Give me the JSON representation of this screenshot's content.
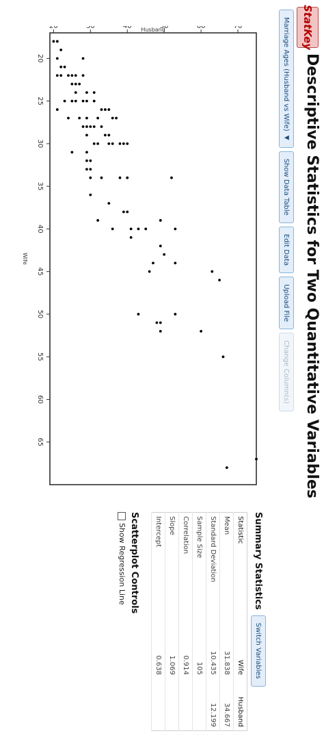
{
  "app": {
    "logo": "StatKey",
    "title": "Descriptive Statistics for Two Quantitative Variables"
  },
  "toolbar": {
    "dataset": "Marriage Ages (Husband vs Wife)",
    "show_table": "Show Data Table",
    "edit": "Edit Data",
    "upload": "Upload File",
    "change_columns": "Change Column(s)"
  },
  "icons": {
    "dataset_dropdown": "chevron-down-icon",
    "regression_checkbox": "checkbox-unchecked-icon"
  },
  "colors": {
    "logo_bg": "#f4c3c3",
    "logo_text": "#b30000",
    "button_bg": "#e3eefa",
    "button_border": "#8ab4d8",
    "point": "#000000"
  },
  "summary": {
    "title": "Summary Statistics",
    "switch_label": "Switch Variables",
    "header": [
      "Statistic",
      "Wife",
      "Husband"
    ],
    "rows": [
      [
        "Mean",
        "31.838",
        "34.667"
      ],
      [
        "Standard Deviation",
        "10.435",
        "12.199"
      ],
      [
        "Sample Size",
        "105",
        ""
      ],
      [
        "Correlation",
        "0.914",
        ""
      ],
      [
        "Slope",
        "1.069",
        ""
      ],
      [
        "Intercept",
        "0.638",
        ""
      ]
    ]
  },
  "controls": {
    "title": "Scatterplot Controls",
    "regression_label": "Show Regression Line",
    "regression_checked": false
  },
  "chart_data": {
    "type": "scatter",
    "xlabel": "Wife",
    "ylabel": "Husband",
    "xlim": [
      17,
      70
    ],
    "ylim": [
      19,
      75
    ],
    "xticks": [
      20,
      25,
      30,
      35,
      40,
      45,
      50,
      55,
      60,
      65
    ],
    "yticks": [
      20,
      30,
      40,
      50,
      60,
      70
    ],
    "points": [
      [
        18,
        20
      ],
      [
        18,
        21
      ],
      [
        19,
        22
      ],
      [
        20,
        21
      ],
      [
        21,
        22
      ],
      [
        21,
        23
      ],
      [
        22,
        21
      ],
      [
        22,
        22
      ],
      [
        22,
        24
      ],
      [
        22,
        25
      ],
      [
        22,
        26
      ],
      [
        22,
        28
      ],
      [
        20,
        28
      ],
      [
        23,
        25
      ],
      [
        23,
        26
      ],
      [
        23,
        27
      ],
      [
        24,
        29
      ],
      [
        24,
        31
      ],
      [
        24,
        26
      ],
      [
        25,
        23
      ],
      [
        25,
        25
      ],
      [
        25,
        26
      ],
      [
        25,
        28
      ],
      [
        25,
        29
      ],
      [
        25,
        31
      ],
      [
        26,
        21
      ],
      [
        26,
        33
      ],
      [
        26,
        34
      ],
      [
        26,
        35
      ],
      [
        27,
        24
      ],
      [
        27,
        27
      ],
      [
        27,
        29
      ],
      [
        27,
        32
      ],
      [
        27,
        36
      ],
      [
        27,
        37
      ],
      [
        28,
        28
      ],
      [
        28,
        29
      ],
      [
        28,
        30
      ],
      [
        28,
        31
      ],
      [
        28,
        33
      ],
      [
        29,
        29
      ],
      [
        29,
        34
      ],
      [
        29,
        35
      ],
      [
        30,
        31
      ],
      [
        30,
        32
      ],
      [
        30,
        35
      ],
      [
        30,
        36
      ],
      [
        30,
        38
      ],
      [
        30,
        39
      ],
      [
        30,
        40
      ],
      [
        31,
        25
      ],
      [
        31,
        29
      ],
      [
        32,
        29
      ],
      [
        32,
        30
      ],
      [
        33,
        29
      ],
      [
        33,
        30
      ],
      [
        34,
        30
      ],
      [
        34,
        33
      ],
      [
        34,
        38
      ],
      [
        34,
        40
      ],
      [
        34,
        52
      ],
      [
        36,
        30
      ],
      [
        37,
        35
      ],
      [
        38,
        39
      ],
      [
        38,
        40
      ],
      [
        39,
        49
      ],
      [
        39,
        32
      ],
      [
        40,
        36
      ],
      [
        40,
        41
      ],
      [
        40,
        43
      ],
      [
        40,
        45
      ],
      [
        40,
        53
      ],
      [
        41,
        41
      ],
      [
        42,
        49
      ],
      [
        43,
        50
      ],
      [
        44,
        47
      ],
      [
        44,
        53
      ],
      [
        45,
        46
      ],
      [
        45,
        63
      ],
      [
        46,
        65
      ],
      [
        50,
        43
      ],
      [
        50,
        53
      ],
      [
        51,
        48
      ],
      [
        51,
        49
      ],
      [
        52,
        49
      ],
      [
        52,
        60
      ],
      [
        55,
        66
      ],
      [
        67,
        75
      ],
      [
        68,
        67
      ]
    ]
  }
}
